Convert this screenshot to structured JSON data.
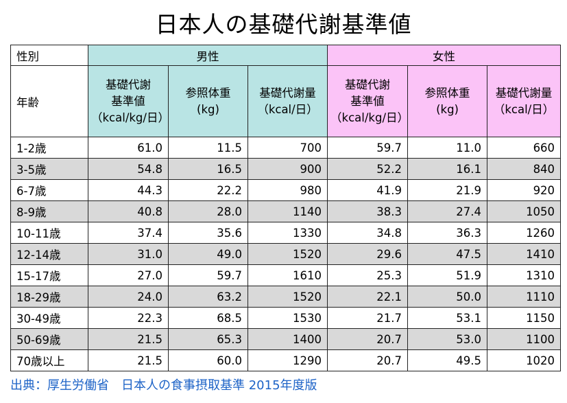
{
  "title": "日本人の基礎代謝基準値",
  "header": {
    "sex_label": "性別",
    "age_label": "年齢",
    "male": "男性",
    "female": "女性",
    "columns": [
      [
        "基礎代謝",
        "基準値",
        "（kcal/kg/日）"
      ],
      [
        "参照体重",
        "(kg)"
      ],
      [
        "基礎代謝量",
        "（kcal/日）"
      ]
    ]
  },
  "rows": [
    {
      "age": "1-2歳",
      "m_std": "61.0",
      "m_wt": "11.5",
      "m_bmr": "700",
      "f_std": "59.7",
      "f_wt": "11.0",
      "f_bmr": "660"
    },
    {
      "age": "3-5歳",
      "m_std": "54.8",
      "m_wt": "16.5",
      "m_bmr": "900",
      "f_std": "52.2",
      "f_wt": "16.1",
      "f_bmr": "840"
    },
    {
      "age": "6-7歳",
      "m_std": "44.3",
      "m_wt": "22.2",
      "m_bmr": "980",
      "f_std": "41.9",
      "f_wt": "21.9",
      "f_bmr": "920"
    },
    {
      "age": "8-9歳",
      "m_std": "40.8",
      "m_wt": "28.0",
      "m_bmr": "1140",
      "f_std": "38.3",
      "f_wt": "27.4",
      "f_bmr": "1050"
    },
    {
      "age": "10-11歳",
      "m_std": "37.4",
      "m_wt": "35.6",
      "m_bmr": "1330",
      "f_std": "34.8",
      "f_wt": "36.3",
      "f_bmr": "1260"
    },
    {
      "age": "12-14歳",
      "m_std": "31.0",
      "m_wt": "49.0",
      "m_bmr": "1520",
      "f_std": "29.6",
      "f_wt": "47.5",
      "f_bmr": "1410"
    },
    {
      "age": "15-17歳",
      "m_std": "27.0",
      "m_wt": "59.7",
      "m_bmr": "1610",
      "f_std": "25.3",
      "f_wt": "51.9",
      "f_bmr": "1310"
    },
    {
      "age": "18-29歳",
      "m_std": "24.0",
      "m_wt": "63.2",
      "m_bmr": "1520",
      "f_std": "22.1",
      "f_wt": "50.0",
      "f_bmr": "1110"
    },
    {
      "age": "30-49歳",
      "m_std": "22.3",
      "m_wt": "68.5",
      "m_bmr": "1530",
      "f_std": "21.7",
      "f_wt": "53.1",
      "f_bmr": "1150"
    },
    {
      "age": "50-69歳",
      "m_std": "21.5",
      "m_wt": "65.3",
      "m_bmr": "1400",
      "f_std": "20.7",
      "f_wt": "53.0",
      "f_bmr": "1100"
    },
    {
      "age": "70歳以上",
      "m_std": "21.5",
      "m_wt": "60.0",
      "m_bmr": "1290",
      "f_std": "20.7",
      "f_wt": "49.5",
      "f_bmr": "1020"
    }
  ],
  "source": "出典：厚生労働省　日本人の食事摂取基準 2015年度版",
  "colors": {
    "male_header": "#b9e4e4",
    "female_header": "#fbc3f7",
    "row_shade": "#d9d9d9",
    "source_text": "#1d63c7"
  }
}
